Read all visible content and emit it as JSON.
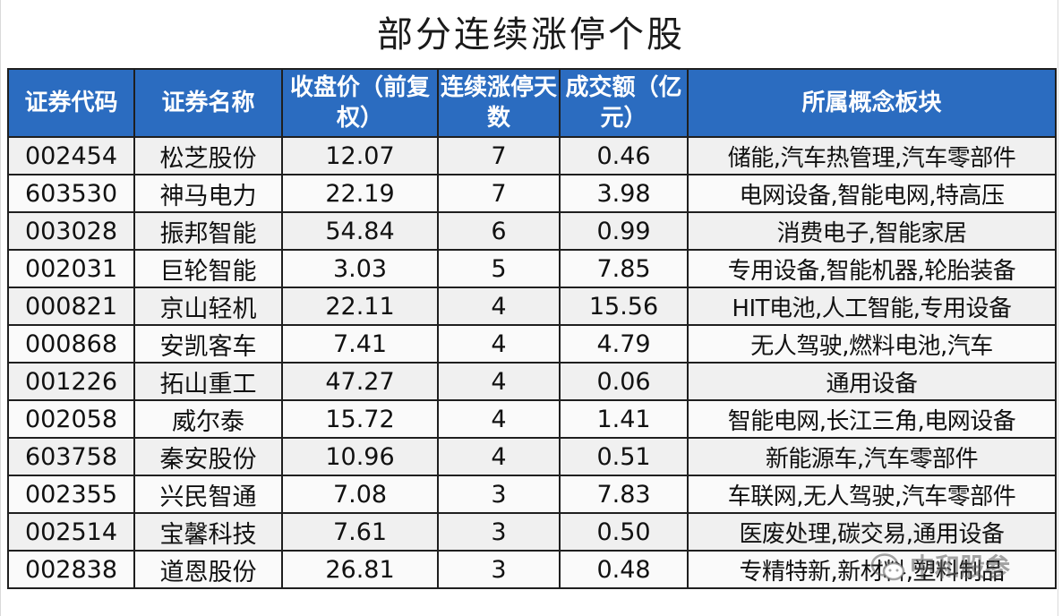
{
  "title": "部分连续涨停个股",
  "table": {
    "headers": [
      "证券代码",
      "证券名称",
      "收盘价（前复权）",
      "连续涨停天数",
      "成交额（亿元）",
      "所属概念板块"
    ],
    "rows": [
      [
        "002454",
        "松芝股份",
        "12.07",
        "7",
        "0.46",
        "储能,汽车热管理,汽车零部件"
      ],
      [
        "603530",
        "神马电力",
        "22.19",
        "7",
        "3.98",
        "电网设备,智能电网,特高压"
      ],
      [
        "003028",
        "振邦智能",
        "54.84",
        "6",
        "0.99",
        "消费电子,智能家居"
      ],
      [
        "002031",
        "巨轮智能",
        "3.03",
        "5",
        "7.85",
        "专用设备,智能机器,轮胎装备"
      ],
      [
        "000821",
        "京山轻机",
        "22.11",
        "4",
        "15.56",
        "HIT电池,人工智能,专用设备"
      ],
      [
        "000868",
        "安凯客车",
        "7.41",
        "4",
        "4.79",
        "无人驾驶,燃料电池,汽车"
      ],
      [
        "001226",
        "拓山重工",
        "47.27",
        "4",
        "0.06",
        "通用设备"
      ],
      [
        "002058",
        "威尔泰",
        "15.72",
        "4",
        "1.41",
        "智能电网,长江三角,电网设备"
      ],
      [
        "603758",
        "秦安股份",
        "10.96",
        "4",
        "0.51",
        "新能源车,汽车零部件"
      ],
      [
        "002355",
        "兴民智通",
        "7.08",
        "3",
        "7.83",
        "车联网,无人驾驶,汽车零部件"
      ],
      [
        "002514",
        "宝馨科技",
        "7.61",
        "3",
        "0.50",
        "医废处理,碳交易,通用设备"
      ],
      [
        "002838",
        "道恩股份",
        "26.81",
        "3",
        "0.48",
        "专精特新,新材料,塑料制品"
      ]
    ]
  },
  "watermark": {
    "icon": "wechat-icon",
    "text": "中和股参"
  },
  "colors": {
    "header_bg": "#2b6cc0",
    "header_text": "#ffffff",
    "border": "#1f1f1f"
  }
}
